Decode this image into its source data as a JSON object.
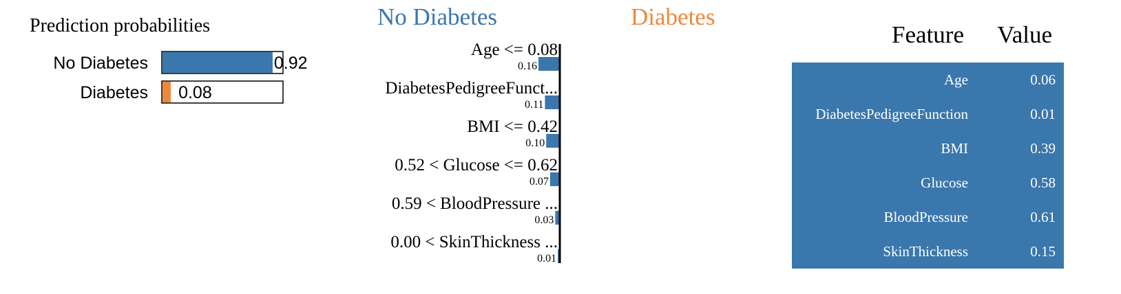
{
  "colors": {
    "negative": "#3a77ad",
    "positive": "#f0883b",
    "table_bg": "#3a77ad",
    "axis": "#000000",
    "text": "#000000",
    "table_text": "#ffffff"
  },
  "chart_data": [
    {
      "type": "bar",
      "title": "Prediction probabilities",
      "categories": [
        "No Diabetes",
        "Diabetes"
      ],
      "values": [
        0.92,
        0.08
      ],
      "value_labels": [
        "0.92",
        "0.08"
      ],
      "xlim": [
        0,
        1
      ]
    },
    {
      "type": "bar",
      "orientation": "horizontal",
      "class_labels": {
        "negative": "No Diabetes",
        "positive": "Diabetes"
      },
      "categories": [
        "Age <= 0.08",
        "DiabetesPedigreeFunct...",
        "BMI <= 0.42",
        "0.52 < Glucose <= 0.62",
        "0.59 < BloodPressure ...",
        "0.00 < SkinThickness ..."
      ],
      "values": [
        0.16,
        0.11,
        0.1,
        0.07,
        0.03,
        0.01
      ],
      "value_labels": [
        "0.16",
        "0.11",
        "0.10",
        "0.07",
        "0.03",
        "0.01"
      ],
      "direction": "negative"
    },
    {
      "type": "table",
      "columns": [
        "Feature",
        "Value"
      ],
      "rows": [
        [
          "Age",
          "0.06"
        ],
        [
          "DiabetesPedigreeFunction",
          "0.01"
        ],
        [
          "BMI",
          "0.39"
        ],
        [
          "Glucose",
          "0.58"
        ],
        [
          "BloodPressure",
          "0.61"
        ],
        [
          "SkinThickness",
          "0.15"
        ]
      ]
    }
  ]
}
